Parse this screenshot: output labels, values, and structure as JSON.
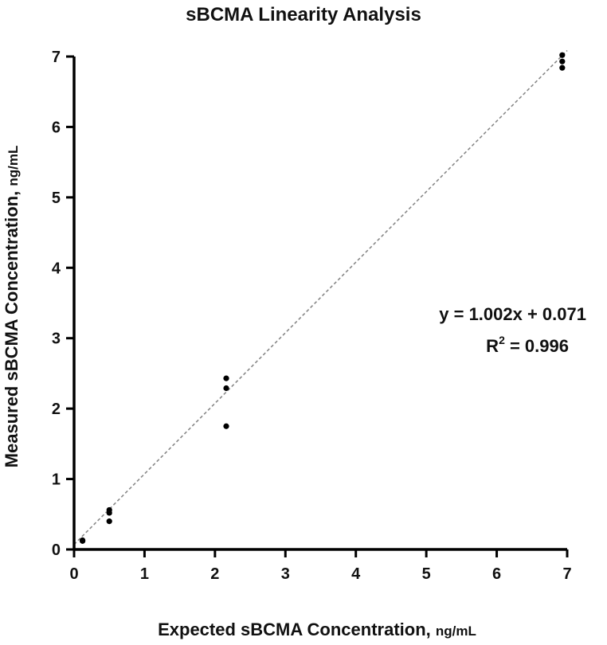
{
  "chart_data": {
    "type": "scatter",
    "title": "sBCMA Linearity Analysis",
    "xlabel": "Expected sBCMA Concentration,",
    "xlabel_unit": "ng/mL",
    "ylabel": "Measured sBCMA Concentration,",
    "ylabel_unit": "ng/mL",
    "xlim": [
      0,
      7
    ],
    "ylim": [
      0,
      7
    ],
    "x_ticks": [
      "0",
      "1",
      "2",
      "3",
      "4",
      "5",
      "6",
      "7"
    ],
    "y_ticks": [
      "0",
      "1",
      "2",
      "3",
      "4",
      "5",
      "6",
      "7"
    ],
    "grid": false,
    "points": [
      {
        "x": 0.12,
        "y": 0.12
      },
      {
        "x": 0.12,
        "y": 0.13
      },
      {
        "x": 0.5,
        "y": 0.4
      },
      {
        "x": 0.5,
        "y": 0.52
      },
      {
        "x": 0.5,
        "y": 0.56
      },
      {
        "x": 2.16,
        "y": 1.75
      },
      {
        "x": 2.16,
        "y": 2.29
      },
      {
        "x": 2.16,
        "y": 2.43
      },
      {
        "x": 6.93,
        "y": 6.84
      },
      {
        "x": 6.93,
        "y": 6.93
      },
      {
        "x": 6.93,
        "y": 7.02
      }
    ],
    "fit_line": {
      "slope": 1.002,
      "intercept": 0.071,
      "style": "dashed",
      "x_range": [
        0,
        7
      ]
    },
    "annotation": {
      "equation": "y = 1.002x + 0.071",
      "r2_base": "R",
      "r2_sup": "2",
      "r2_value": " = 0.996"
    },
    "colors": {
      "points": "#000000",
      "fit_line": "#888888",
      "axis": "#000000"
    }
  }
}
